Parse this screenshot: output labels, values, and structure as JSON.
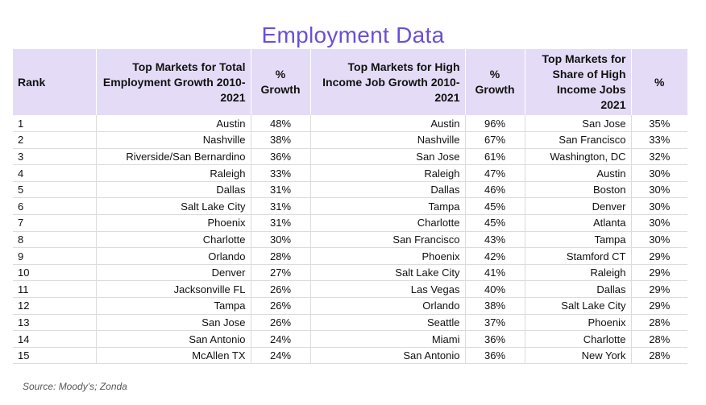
{
  "title": "Employment Data",
  "headers": [
    "Rank",
    "Top Markets for Total Employment Growth 2010-2021",
    "% Growth",
    "Top Markets for High Income Job Growth 2010-2021",
    "% Growth",
    "Top Markets for Share of High Income Jobs 2021",
    "%"
  ],
  "rows": [
    [
      "1",
      "Austin",
      "48%",
      "Austin",
      "96%",
      "San Jose",
      "35%"
    ],
    [
      "2",
      "Nashville",
      "38%",
      "Nashville",
      "67%",
      "San Francisco",
      "33%"
    ],
    [
      "3",
      "Riverside/San Bernardino",
      "36%",
      "San Jose",
      "61%",
      "Washington, DC",
      "32%"
    ],
    [
      "4",
      "Raleigh",
      "33%",
      "Raleigh",
      "47%",
      "Austin",
      "30%"
    ],
    [
      "5",
      "Dallas",
      "31%",
      "Dallas",
      "46%",
      "Boston",
      "30%"
    ],
    [
      "6",
      "Salt Lake City",
      "31%",
      "Tampa",
      "45%",
      "Denver",
      "30%"
    ],
    [
      "7",
      "Phoenix",
      "31%",
      "Charlotte",
      "45%",
      "Atlanta",
      "30%"
    ],
    [
      "8",
      "Charlotte",
      "30%",
      "San Francisco",
      "43%",
      "Tampa",
      "30%"
    ],
    [
      "9",
      "Orlando",
      "28%",
      "Phoenix",
      "42%",
      "Stamford CT",
      "29%"
    ],
    [
      "10",
      "Denver",
      "27%",
      "Salt Lake City",
      "41%",
      "Raleigh",
      "29%"
    ],
    [
      "11",
      "Jacksonville FL",
      "26%",
      "Las Vegas",
      "40%",
      "Dallas",
      "29%"
    ],
    [
      "12",
      "Tampa",
      "26%",
      "Orlando",
      "38%",
      "Salt Lake City",
      "29%"
    ],
    [
      "13",
      "San Jose",
      "26%",
      "Seattle",
      "37%",
      "Phoenix",
      "28%"
    ],
    [
      "14",
      "San Antonio",
      "24%",
      "Miami",
      "36%",
      "Charlotte",
      "28%"
    ],
    [
      "15",
      "McAllen TX",
      "24%",
      "San Antonio",
      "36%",
      "New York",
      "28%"
    ]
  ],
  "source": "Source: Moody’s; Zonda",
  "colors": {
    "title": "#6b4fd8",
    "header_bg": "#e4dcf7"
  }
}
